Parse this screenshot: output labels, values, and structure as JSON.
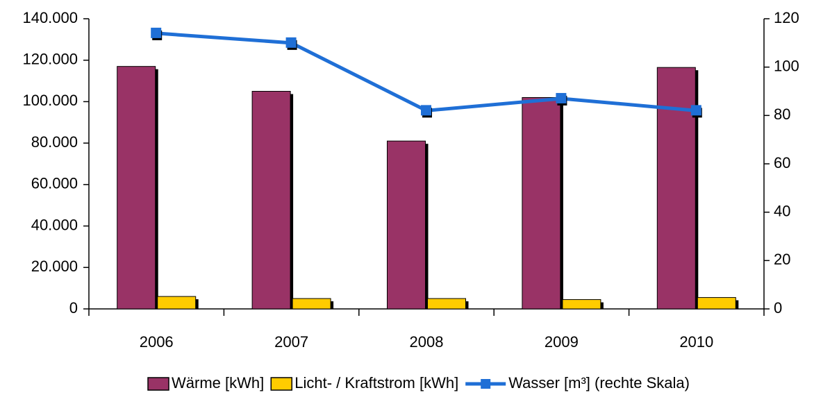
{
  "chart_data": {
    "type": "bar-line",
    "categories": [
      "2006",
      "2007",
      "2008",
      "2009",
      "2010"
    ],
    "series": [
      {
        "name": "Wärme [kWh]",
        "color": "#993366",
        "type": "bar",
        "values": [
          117000,
          105000,
          81000,
          102000,
          116500
        ]
      },
      {
        "name": "Licht- / Kraftstrom [kWh]",
        "color": "#ffcc00",
        "type": "bar",
        "values": [
          6000,
          5000,
          5000,
          4500,
          5500
        ]
      },
      {
        "name": "Wasser [m³] (rechte Skala)",
        "color": "#1f6fd6",
        "type": "line",
        "axis": "y2",
        "values": [
          114,
          110,
          82,
          87,
          82
        ]
      }
    ],
    "ylim": [
      0,
      140000
    ],
    "yticks": [
      0,
      {
        "value": 20000,
        "label": "20.000"
      },
      {
        "value": 40000,
        "label": "40.000"
      },
      {
        "value": 60000,
        "label": "60.000"
      },
      {
        "value": 80000,
        "label": "80.000"
      },
      {
        "value": 100000,
        "label": "100.000"
      },
      {
        "value": 120000,
        "label": "120.000"
      },
      {
        "value": 140000,
        "label": "140.000"
      }
    ],
    "y2lim": [
      0,
      120
    ],
    "y2ticks": [
      0,
      20,
      40,
      60,
      80,
      100,
      120
    ],
    "grid": false,
    "legend": "bottom"
  }
}
